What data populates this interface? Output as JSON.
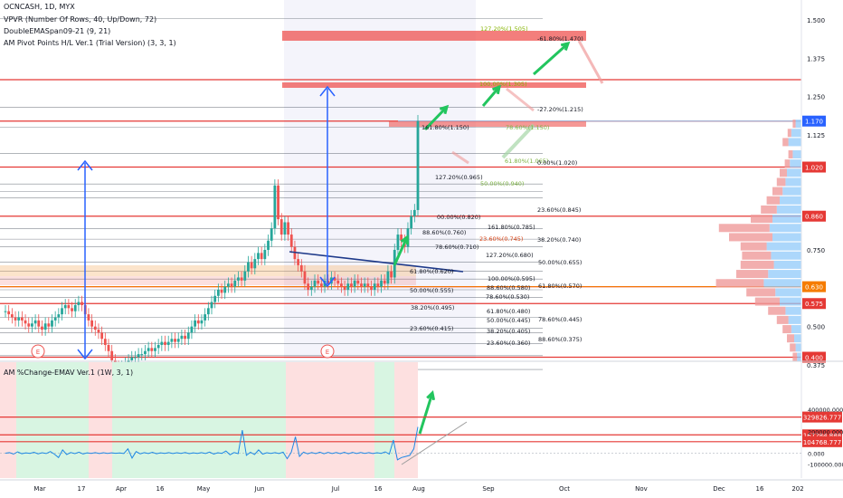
{
  "header": {
    "symbol_line": "OCNCASH, 1D, MYX",
    "indicators": [
      "VPVR (Number Of Rows, 40, Up/Down, 72)",
      "DoubleEMASpan09-21 (9, 21)",
      "AM Pivot Points H/L Ver.1 (Trial Version) (3, 3, 1)"
    ]
  },
  "colors": {
    "up": "#26a69a",
    "down": "#ef5350",
    "red_line": "#e53935",
    "blue": "#2962ff",
    "green_arrow": "#22c55e",
    "price_badge": "#2962ff",
    "level_badge": "#e53935",
    "poc_badge": "#f57c00"
  },
  "chart_data": [
    {
      "type": "candlestick",
      "title": "OCNCASH, 1D, MYX",
      "y_axis_ticks": [
        "1.500",
        "1.375",
        "1.250",
        "1.125",
        "0.750",
        "0.500",
        "0.375"
      ],
      "ylim": [
        0.3,
        1.62
      ],
      "x_axis_ticks": [
        "Mar",
        "17",
        "Apr",
        "16",
        "May",
        "Jun",
        "Jul",
        "16",
        "Aug",
        "Sep",
        "Oct",
        "Nov",
        "Dec",
        "16",
        "202"
      ],
      "close_series": [
        0.55,
        0.54,
        0.53,
        0.52,
        0.53,
        0.52,
        0.51,
        0.5,
        0.51,
        0.52,
        0.5,
        0.49,
        0.51,
        0.5,
        0.52,
        0.53,
        0.54,
        0.56,
        0.57,
        0.56,
        0.55,
        0.57,
        0.58,
        0.57,
        0.54,
        0.52,
        0.5,
        0.49,
        0.48,
        0.46,
        0.44,
        0.42,
        0.39,
        0.37,
        0.36,
        0.37,
        0.38,
        0.39,
        0.4,
        0.4,
        0.41,
        0.41,
        0.42,
        0.43,
        0.42,
        0.43,
        0.44,
        0.45,
        0.44,
        0.45,
        0.46,
        0.45,
        0.46,
        0.47,
        0.46,
        0.48,
        0.5,
        0.52,
        0.51,
        0.52,
        0.54,
        0.56,
        0.58,
        0.6,
        0.62,
        0.61,
        0.63,
        0.64,
        0.63,
        0.65,
        0.66,
        0.65,
        0.68,
        0.71,
        0.69,
        0.72,
        0.74,
        0.72,
        0.75,
        0.78,
        0.82,
        0.96,
        0.85,
        0.8,
        0.84,
        0.8,
        0.76,
        0.72,
        0.7,
        0.68,
        0.64,
        0.62,
        0.63,
        0.65,
        0.64,
        0.63,
        0.65,
        0.64,
        0.66,
        0.65,
        0.64,
        0.63,
        0.62,
        0.64,
        0.63,
        0.65,
        0.64,
        0.63,
        0.64,
        0.63,
        0.62,
        0.64,
        0.63,
        0.65,
        0.64,
        0.68,
        0.66,
        0.75,
        0.8,
        0.78,
        0.76,
        0.82,
        0.86,
        0.88,
        1.17
      ],
      "price_labels": [
        {
          "value": 1.17,
          "text": "1.170",
          "kind": "price"
        },
        {
          "value": 1.02,
          "text": "1.020",
          "kind": "level"
        },
        {
          "value": 0.86,
          "text": "0.860",
          "kind": "level"
        },
        {
          "value": 0.63,
          "text": "0.630",
          "kind": "poc"
        },
        {
          "value": 0.575,
          "text": "0.575",
          "kind": "level"
        },
        {
          "value": 0.4,
          "text": "0.400",
          "kind": "level"
        }
      ],
      "horizontal_levels": [
        1.47,
        1.305,
        1.17,
        1.02,
        0.86,
        0.63,
        0.575,
        0.4
      ],
      "fib_annotations": [
        "127.20%(1.505)",
        "-61.80%(1.470)",
        "100.00%(1.305)",
        "-27.20%(1.215)",
        "161.80%(1.150)",
        "78.60%(1.150)",
        "61.80%(1.065)",
        "0.00%(1.020)",
        "127.20%(0.965)",
        "50.00%(0.940)",
        "23.60%(0.845)",
        "00.00%(0.820)",
        "161.80%(0.785)",
        "88.60%(0.760)",
        "23.60%(0.745)",
        "38.20%(0.740)",
        "78.60%(0.710)",
        "127.20%(0.680)",
        "50.00%(0.655)",
        "61.80%(0.620)",
        "100.00%(0.595)",
        "88.60%(0.580)",
        "61.80%(0.570)",
        "50.00%(0.555)",
        "78.60%(0.530)",
        "38.20%(0.495)",
        "61.80%(0.480)",
        "50.00%(0.445)",
        "78.60%(0.445)",
        "23.60%(0.415)",
        "38.20%(0.405)",
        "23.60%(0.360)",
        "88.60%(0.375)"
      ],
      "volume_profile": [
        {
          "price": 1.16,
          "up": 8,
          "down": 4
        },
        {
          "price": 1.13,
          "up": 14,
          "down": 5
        },
        {
          "price": 1.1,
          "up": 18,
          "down": 8
        },
        {
          "price": 1.06,
          "up": 12,
          "down": 6
        },
        {
          "price": 1.03,
          "up": 16,
          "down": 7
        },
        {
          "price": 1.0,
          "up": 20,
          "down": 10
        },
        {
          "price": 0.97,
          "up": 22,
          "down": 12
        },
        {
          "price": 0.94,
          "up": 26,
          "down": 14
        },
        {
          "price": 0.91,
          "up": 30,
          "down": 18
        },
        {
          "price": 0.88,
          "up": 34,
          "down": 22
        },
        {
          "price": 0.85,
          "up": 40,
          "down": 30
        },
        {
          "price": 0.82,
          "up": 44,
          "down": 70
        },
        {
          "price": 0.79,
          "up": 40,
          "down": 60
        },
        {
          "price": 0.76,
          "up": 48,
          "down": 36
        },
        {
          "price": 0.73,
          "up": 42,
          "down": 40
        },
        {
          "price": 0.7,
          "up": 38,
          "down": 46
        },
        {
          "price": 0.67,
          "up": 46,
          "down": 44
        },
        {
          "price": 0.64,
          "up": 52,
          "down": 66
        },
        {
          "price": 0.61,
          "up": 36,
          "down": 40
        },
        {
          "price": 0.58,
          "up": 30,
          "down": 34
        },
        {
          "price": 0.55,
          "up": 22,
          "down": 24
        },
        {
          "price": 0.52,
          "up": 18,
          "down": 16
        },
        {
          "price": 0.49,
          "up": 14,
          "down": 12
        },
        {
          "price": 0.46,
          "up": 10,
          "down": 10
        },
        {
          "price": 0.43,
          "up": 8,
          "down": 8
        },
        {
          "price": 0.4,
          "up": 6,
          "down": 6
        }
      ]
    },
    {
      "type": "line",
      "title": "AM %Change-EMAV Ver.1 (1W, 3, 1)",
      "y_axis_ticks": [
        "400000.000",
        "200000.000",
        "0.000",
        "-100000.000"
      ],
      "ylim": [
        -130000,
        420000
      ],
      "level_labels": [
        {
          "value": 329826.777,
          "text": "329826.777"
        },
        {
          "value": 167284.888,
          "text": "167284.888"
        },
        {
          "value": 104768.777,
          "text": "104768.777"
        }
      ],
      "values": [
        0,
        5000,
        -8000,
        12000,
        -5000,
        3000,
        -2000,
        8000,
        -6000,
        4000,
        -3000,
        15000,
        -9000,
        -40000,
        30000,
        -12000,
        6000,
        -4000,
        9000,
        -7000,
        3000,
        -2000,
        5000,
        -3000,
        4000,
        -2000,
        3000,
        -1000,
        2000,
        -3000,
        40000,
        -45000,
        15000,
        -6000,
        5000,
        -3000,
        8000,
        -5000,
        3000,
        -2000,
        5000,
        -3000,
        4000,
        -2000,
        6000,
        -4000,
        3000,
        -2000,
        5000,
        -3000,
        10000,
        -8000,
        4000,
        -2000,
        20000,
        -15000,
        6000,
        -4000,
        210000,
        -20000,
        8000,
        -12000,
        30000,
        -8000,
        4000,
        -2000,
        5000,
        -3000,
        9000,
        -50000,
        8000,
        150000,
        -30000,
        10000,
        -6000,
        6000,
        -4000,
        9000,
        -5000,
        7000,
        -3000,
        6000,
        -4000,
        8000,
        -5000,
        7000,
        -3000,
        6000,
        -2000,
        5000,
        -3000,
        4000,
        -2000,
        12000,
        -8000,
        120000,
        -60000,
        -40000,
        -30000,
        -20000,
        40000,
        240000
      ]
    }
  ]
}
